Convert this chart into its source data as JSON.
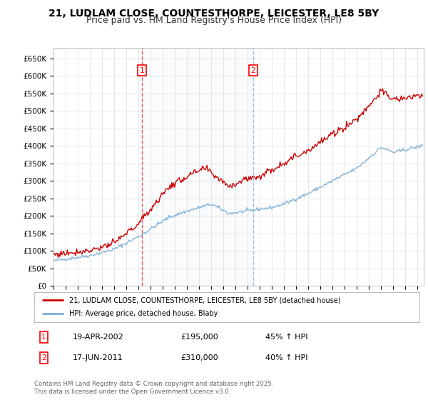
{
  "title": "21, LUDLAM CLOSE, COUNTESTHORPE, LEICESTER, LE8 5BY",
  "subtitle": "Price paid vs. HM Land Registry's House Price Index (HPI)",
  "ylim": [
    0,
    680000
  ],
  "yticks": [
    0,
    50000,
    100000,
    150000,
    200000,
    250000,
    300000,
    350000,
    400000,
    450000,
    500000,
    550000,
    600000,
    650000
  ],
  "ytick_labels": [
    "£0",
    "£50K",
    "£100K",
    "£150K",
    "£200K",
    "£250K",
    "£300K",
    "£350K",
    "£400K",
    "£450K",
    "£500K",
    "£550K",
    "£600K",
    "£650K"
  ],
  "hpi_color": "#7aadd4",
  "price_color": "#cc0000",
  "vline1_color": "#dd4444",
  "vline2_color": "#88bbdd",
  "marker1_date": 2002.29,
  "marker2_date": 2011.45,
  "legend_line1": "21, LUDLAM CLOSE, COUNTESTHORPE, LEICESTER, LE8 5BY (detached house)",
  "legend_line2": "HPI: Average price, detached house, Blaby",
  "annotation1_date": "19-APR-2002",
  "annotation1_price": "£195,000",
  "annotation1_hpi": "45% ↑ HPI",
  "annotation2_date": "17-JUN-2011",
  "annotation2_price": "£310,000",
  "annotation2_hpi": "40% ↑ HPI",
  "footer": "Contains HM Land Registry data © Crown copyright and database right 2025.\nThis data is licensed under the Open Government Licence v3.0.",
  "background_color": "#ffffff",
  "plot_bg_color": "#ffffff",
  "grid_color": "#dddddd",
  "title_fontsize": 10,
  "subtitle_fontsize": 9
}
